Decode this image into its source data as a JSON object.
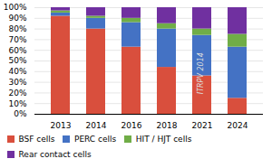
{
  "chart_data": {
    "type": "bar",
    "stacked": true,
    "categories": [
      "2013",
      "2014",
      "2016",
      "2018",
      "2021",
      "2024"
    ],
    "series": [
      {
        "name": "BSF cells",
        "color": "#d94f3d",
        "values": [
          92,
          80,
          63,
          44,
          36,
          15
        ]
      },
      {
        "name": "PERC cells",
        "color": "#4472c4",
        "values": [
          3,
          10,
          23,
          36,
          38,
          48
        ]
      },
      {
        "name": "HIT / HJT cells",
        "color": "#70ad47",
        "values": [
          2,
          2,
          4,
          5,
          6,
          12
        ]
      },
      {
        "name": "Rear contact cells",
        "color": "#7030a0",
        "values": [
          3,
          8,
          10,
          15,
          20,
          25
        ]
      }
    ],
    "ylim": [
      0,
      100
    ],
    "yticks": [
      {
        "value": 0,
        "label": "0%"
      },
      {
        "value": 10,
        "label": "10%"
      },
      {
        "value": 20,
        "label": "20%"
      },
      {
        "value": 30,
        "label": "30%"
      },
      {
        "value": 40,
        "label": "40%"
      },
      {
        "value": 50,
        "label": "50%"
      },
      {
        "value": 60,
        "label": "60%"
      },
      {
        "value": 70,
        "label": "70%"
      },
      {
        "value": 80,
        "label": "80%"
      },
      {
        "value": 90,
        "label": "90%"
      },
      {
        "value": 100,
        "label": "100%"
      }
    ],
    "grid": true,
    "legend": "bottom",
    "annotations": [
      "ITRPV 2014"
    ]
  }
}
